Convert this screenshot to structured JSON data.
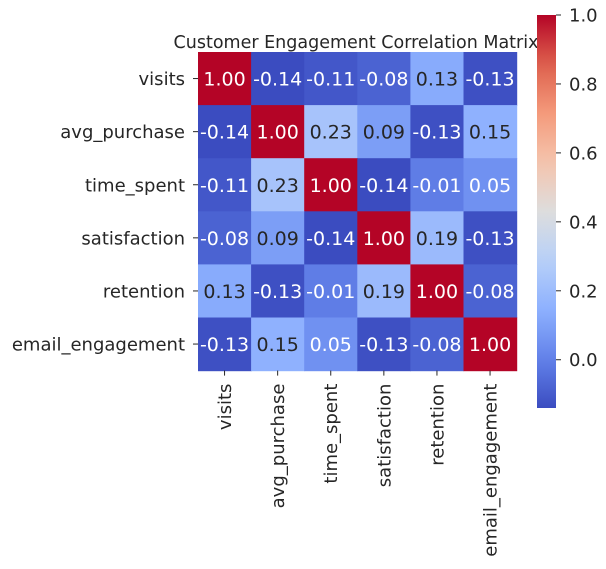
{
  "chart_data": {
    "type": "heatmap",
    "title": "Customer Engagement Correlation Matrix",
    "row_labels": [
      "visits",
      "avg_purchase",
      "time_spent",
      "satisfaction",
      "retention",
      "email_engagement"
    ],
    "col_labels": [
      "visits",
      "avg_purchase",
      "time_spent",
      "satisfaction",
      "retention",
      "email_engagement"
    ],
    "values": [
      [
        1.0,
        -0.14,
        -0.11,
        -0.08,
        0.13,
        -0.13
      ],
      [
        -0.14,
        1.0,
        0.23,
        0.09,
        -0.13,
        0.15
      ],
      [
        -0.11,
        0.23,
        1.0,
        -0.14,
        -0.01,
        0.05
      ],
      [
        -0.08,
        0.09,
        -0.14,
        1.0,
        0.19,
        -0.13
      ],
      [
        0.13,
        -0.13,
        -0.01,
        0.19,
        1.0,
        -0.08
      ],
      [
        -0.13,
        0.15,
        0.05,
        -0.13,
        -0.08,
        1.0
      ]
    ],
    "value_labels": [
      [
        "1.00",
        "-0.14",
        "-0.11",
        "-0.08",
        "0.13",
        "-0.13"
      ],
      [
        "-0.14",
        "1.00",
        "0.23",
        "0.09",
        "-0.13",
        "0.15"
      ],
      [
        "-0.11",
        "0.23",
        "1.00",
        "-0.14",
        "-0.01",
        "0.05"
      ],
      [
        "-0.08",
        "0.09",
        "-0.14",
        "1.00",
        "0.19",
        "-0.13"
      ],
      [
        "0.13",
        "-0.13",
        "-0.01",
        "0.19",
        "1.00",
        "-0.08"
      ],
      [
        "-0.13",
        "0.15",
        "0.05",
        "-0.13",
        "-0.08",
        "1.00"
      ]
    ],
    "colormap": "coolwarm",
    "vmin": -0.14,
    "vmax": 1.0,
    "colorbar": {
      "ticks": [
        0.0,
        0.2,
        0.4,
        0.6,
        0.8,
        1.0
      ],
      "tick_labels": [
        "0.0",
        "0.2",
        "0.4",
        "0.6",
        "0.8",
        "1.0"
      ],
      "placement": "right"
    },
    "grid": false
  }
}
